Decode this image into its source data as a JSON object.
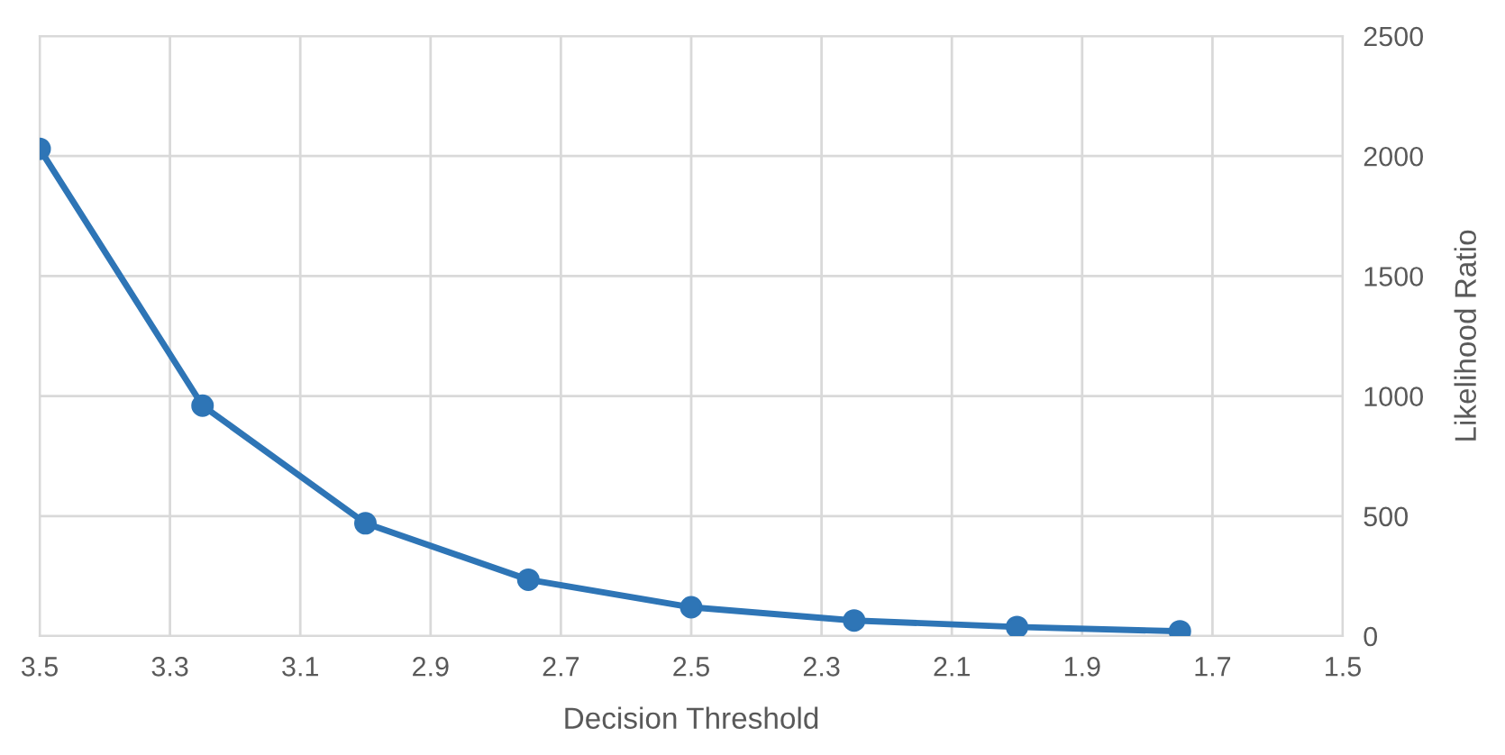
{
  "chart_data": {
    "type": "line",
    "xlabel": "Decision Threshold",
    "ylabel": "Likelihood Ratio",
    "x": [
      3.5,
      3.25,
      3.0,
      2.75,
      2.5,
      2.25,
      2.0,
      1.75
    ],
    "series": [
      {
        "color": "#2e75b6",
        "values": [
          2030,
          960,
          470,
          235,
          120,
          65,
          38,
          20
        ]
      }
    ],
    "xlim": [
      3.5,
      1.5
    ],
    "xticks": [
      3.5,
      3.3,
      3.1,
      2.9,
      2.7,
      2.5,
      2.3,
      2.1,
      1.9,
      1.7,
      1.5
    ],
    "ylim": [
      0,
      2500
    ],
    "yticks": [
      0,
      500,
      1000,
      1500,
      2000,
      2500
    ],
    "grid": true,
    "marker": "circle",
    "line_style": "solid"
  }
}
